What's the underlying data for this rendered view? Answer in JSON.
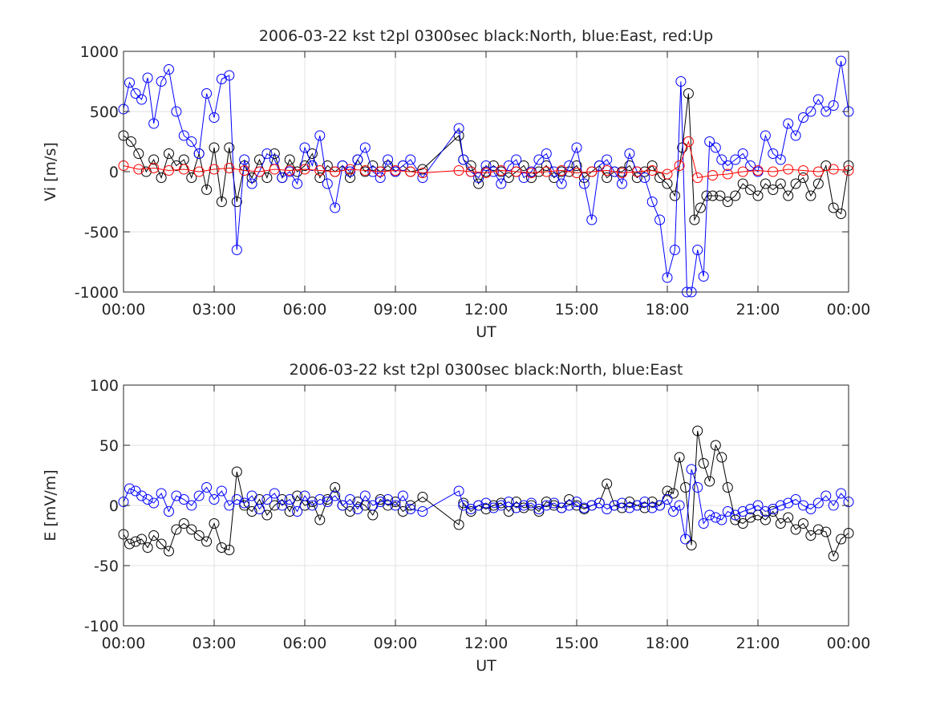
{
  "chart_data": [
    {
      "type": "scatter",
      "title": "2006-03-22 kst t2pl 0300sec black:North, blue:East, red:Up",
      "xlabel": "UT",
      "ylabel": "Vi [m/s]",
      "xlim": [
        0,
        24
      ],
      "ylim": [
        -1000,
        1000
      ],
      "xticks": [
        "00:00",
        "03:00",
        "06:00",
        "09:00",
        "12:00",
        "15:00",
        "18:00",
        "21:00",
        "00:00"
      ],
      "yticks": [
        "-1000",
        "-500",
        "0",
        "500",
        "1000"
      ],
      "grid": true,
      "series": [
        {
          "name": "North",
          "color": "#000000",
          "x": [
            0.0,
            0.25,
            0.5,
            0.75,
            1.0,
            1.25,
            1.5,
            1.75,
            2.0,
            2.25,
            2.5,
            2.75,
            3.0,
            3.25,
            3.5,
            3.75,
            4.0,
            4.25,
            4.5,
            4.75,
            5.0,
            5.25,
            5.5,
            5.75,
            6.0,
            6.25,
            6.5,
            6.75,
            7.0,
            7.25,
            7.5,
            7.75,
            8.0,
            8.25,
            8.5,
            8.75,
            9.0,
            9.25,
            9.5,
            9.9,
            11.1,
            11.25,
            11.5,
            11.75,
            12.0,
            12.25,
            12.5,
            12.75,
            13.0,
            13.25,
            13.5,
            13.75,
            14.0,
            14.25,
            14.5,
            14.75,
            15.0,
            15.25,
            15.5,
            15.75,
            16.0,
            16.25,
            16.5,
            16.75,
            17.0,
            17.25,
            17.5,
            17.75,
            18.0,
            18.25,
            18.5,
            18.7,
            18.9,
            19.1,
            19.3,
            19.5,
            19.75,
            20.0,
            20.25,
            20.5,
            20.75,
            21.0,
            21.25,
            21.5,
            21.75,
            22.0,
            22.25,
            22.5,
            22.75,
            23.0,
            23.25,
            23.5,
            23.75,
            24.0
          ],
          "y": [
            300,
            250,
            150,
            0,
            100,
            -50,
            150,
            50,
            100,
            -50,
            150,
            -150,
            200,
            -250,
            200,
            -250,
            50,
            -50,
            100,
            -50,
            150,
            -50,
            100,
            0,
            50,
            150,
            -50,
            50,
            0,
            50,
            -50,
            100,
            0,
            50,
            0,
            50,
            0,
            50,
            0,
            20,
            300,
            100,
            50,
            -100,
            0,
            50,
            0,
            -50,
            0,
            50,
            -50,
            0,
            50,
            -50,
            0,
            0,
            50,
            -50,
            0,
            50,
            -50,
            0,
            0,
            50,
            -50,
            0,
            50,
            -50,
            -100,
            -200,
            200,
            650,
            -400,
            -300,
            -200,
            -200,
            -200,
            -250,
            -200,
            -100,
            -150,
            -200,
            -100,
            -150,
            -100,
            -200,
            -100,
            -50,
            -200,
            -100,
            50,
            -300,
            -350,
            50
          ]
        },
        {
          "name": "East",
          "color": "#0000ff",
          "x": [
            0.0,
            0.2,
            0.4,
            0.6,
            0.8,
            1.0,
            1.25,
            1.5,
            1.75,
            2.0,
            2.25,
            2.5,
            2.75,
            3.0,
            3.25,
            3.5,
            3.75,
            4.0,
            4.25,
            4.5,
            4.75,
            5.0,
            5.25,
            5.5,
            5.75,
            6.0,
            6.25,
            6.5,
            6.75,
            7.0,
            7.25,
            7.5,
            7.75,
            8.0,
            8.25,
            8.5,
            8.75,
            9.0,
            9.25,
            9.5,
            9.9,
            11.1,
            11.25,
            11.5,
            11.75,
            12.0,
            12.25,
            12.5,
            12.75,
            13.0,
            13.25,
            13.5,
            13.75,
            14.0,
            14.25,
            14.5,
            14.75,
            15.0,
            15.25,
            15.5,
            15.75,
            16.0,
            16.25,
            16.5,
            16.75,
            17.0,
            17.25,
            17.5,
            17.75,
            18.0,
            18.25,
            18.45,
            18.65,
            18.8,
            19.0,
            19.2,
            19.4,
            19.6,
            19.8,
            20.0,
            20.25,
            20.5,
            20.75,
            21.0,
            21.25,
            21.5,
            21.75,
            22.0,
            22.25,
            22.5,
            22.75,
            23.0,
            23.25,
            23.5,
            23.75,
            24.0
          ],
          "y": [
            520,
            740,
            650,
            600,
            780,
            400,
            750,
            850,
            500,
            300,
            250,
            150,
            650,
            450,
            770,
            800,
            -650,
            100,
            -100,
            0,
            150,
            100,
            -50,
            0,
            -100,
            200,
            50,
            300,
            -100,
            -300,
            50,
            0,
            100,
            200,
            0,
            -50,
            100,
            0,
            50,
            100,
            -50,
            360,
            100,
            0,
            -50,
            50,
            0,
            -100,
            50,
            100,
            -50,
            0,
            100,
            150,
            0,
            -100,
            50,
            200,
            -100,
            -400,
            50,
            100,
            0,
            -100,
            150,
            0,
            -50,
            -250,
            -400,
            -880,
            -650,
            750,
            -1000,
            -1000,
            -650,
            -870,
            250,
            200,
            100,
            50,
            100,
            150,
            50,
            0,
            300,
            150,
            100,
            400,
            300,
            450,
            500,
            600,
            500,
            550,
            920,
            500
          ]
        },
        {
          "name": "Up",
          "color": "#ff0000",
          "x": [
            0.0,
            0.5,
            1.0,
            1.5,
            2.0,
            2.5,
            3.0,
            3.5,
            4.0,
            4.5,
            5.0,
            5.5,
            6.0,
            6.5,
            7.0,
            7.5,
            8.0,
            8.5,
            9.0,
            9.5,
            9.9,
            11.1,
            11.5,
            12.0,
            12.5,
            13.0,
            13.5,
            14.0,
            14.5,
            15.0,
            15.5,
            16.0,
            16.5,
            17.0,
            17.5,
            18.0,
            18.4,
            18.7,
            19.0,
            19.5,
            20.0,
            20.5,
            21.0,
            21.5,
            22.0,
            22.5,
            23.0,
            23.5,
            24.0
          ],
          "y": [
            50,
            20,
            30,
            10,
            20,
            0,
            20,
            30,
            10,
            0,
            20,
            10,
            20,
            10,
            0,
            20,
            10,
            0,
            10,
            0,
            -10,
            10,
            0,
            -10,
            10,
            0,
            -10,
            0,
            10,
            -10,
            0,
            10,
            -10,
            0,
            10,
            -20,
            50,
            250,
            -50,
            -30,
            -20,
            0,
            10,
            0,
            20,
            10,
            0,
            20,
            10
          ]
        }
      ]
    },
    {
      "type": "scatter",
      "title": "2006-03-22 kst t2pl 0300sec black:North, blue:East",
      "xlabel": "UT",
      "ylabel": "E [mV/m]",
      "xlim": [
        0,
        24
      ],
      "ylim": [
        -100,
        100
      ],
      "xticks": [
        "00:00",
        "03:00",
        "06:00",
        "09:00",
        "12:00",
        "15:00",
        "18:00",
        "21:00",
        "00:00"
      ],
      "yticks": [
        "-100",
        "-50",
        "0",
        "50",
        "100"
      ],
      "grid": true,
      "series": [
        {
          "name": "North",
          "color": "#000000",
          "x": [
            0.0,
            0.2,
            0.4,
            0.6,
            0.8,
            1.0,
            1.25,
            1.5,
            1.75,
            2.0,
            2.25,
            2.5,
            2.75,
            3.0,
            3.25,
            3.5,
            3.75,
            4.0,
            4.25,
            4.5,
            4.75,
            5.0,
            5.25,
            5.5,
            5.75,
            6.0,
            6.25,
            6.5,
            6.75,
            7.0,
            7.25,
            7.5,
            7.75,
            8.0,
            8.25,
            8.5,
            8.75,
            9.0,
            9.25,
            9.5,
            9.9,
            11.1,
            11.25,
            11.5,
            11.75,
            12.0,
            12.25,
            12.5,
            12.75,
            13.0,
            13.25,
            13.5,
            13.75,
            14.0,
            14.25,
            14.5,
            14.75,
            15.0,
            15.25,
            15.5,
            15.75,
            16.0,
            16.25,
            16.5,
            16.75,
            17.0,
            17.25,
            17.5,
            17.75,
            18.0,
            18.2,
            18.4,
            18.6,
            18.8,
            19.0,
            19.2,
            19.4,
            19.6,
            19.8,
            20.0,
            20.25,
            20.5,
            20.75,
            21.0,
            21.25,
            21.5,
            21.75,
            22.0,
            22.25,
            22.5,
            22.75,
            23.0,
            23.25,
            23.5,
            23.75,
            24.0
          ],
          "y": [
            -24,
            -32,
            -30,
            -28,
            -35,
            -25,
            -32,
            -38,
            -20,
            -15,
            -20,
            -25,
            -30,
            -15,
            -35,
            -37,
            28,
            0,
            -5,
            5,
            -8,
            0,
            5,
            -5,
            8,
            0,
            3,
            -12,
            5,
            15,
            0,
            -5,
            3,
            0,
            -8,
            5,
            0,
            3,
            -5,
            0,
            7,
            -16,
            2,
            -5,
            0,
            -3,
            0,
            2,
            -5,
            3,
            -2,
            0,
            -5,
            3,
            0,
            -2,
            5,
            0,
            -3,
            0,
            2,
            18,
            0,
            -2,
            3,
            0,
            -2,
            3,
            0,
            12,
            10,
            40,
            15,
            -33,
            62,
            35,
            20,
            50,
            40,
            15,
            -12,
            -15,
            -10,
            -8,
            -12,
            -5,
            -15,
            -10,
            -20,
            -15,
            -25,
            -20,
            -22,
            -42,
            -28,
            -23
          ]
        },
        {
          "name": "East",
          "color": "#0000ff",
          "x": [
            0.0,
            0.2,
            0.4,
            0.6,
            0.8,
            1.0,
            1.25,
            1.5,
            1.75,
            2.0,
            2.25,
            2.5,
            2.75,
            3.0,
            3.25,
            3.5,
            3.75,
            4.0,
            4.25,
            4.5,
            4.75,
            5.0,
            5.25,
            5.5,
            5.75,
            6.0,
            6.25,
            6.5,
            6.75,
            7.0,
            7.25,
            7.5,
            7.75,
            8.0,
            8.25,
            8.5,
            8.75,
            9.0,
            9.25,
            9.5,
            9.9,
            11.1,
            11.25,
            11.5,
            11.75,
            12.0,
            12.25,
            12.5,
            12.75,
            13.0,
            13.25,
            13.5,
            13.75,
            14.0,
            14.25,
            14.5,
            14.75,
            15.0,
            15.25,
            15.5,
            15.75,
            16.0,
            16.25,
            16.5,
            16.75,
            17.0,
            17.25,
            17.5,
            17.75,
            18.0,
            18.2,
            18.4,
            18.6,
            18.8,
            19.0,
            19.2,
            19.4,
            19.6,
            19.8,
            20.0,
            20.25,
            20.5,
            20.75,
            21.0,
            21.25,
            21.5,
            21.75,
            22.0,
            22.25,
            22.5,
            22.75,
            23.0,
            23.25,
            23.5,
            23.75,
            24.0
          ],
          "y": [
            3,
            14,
            12,
            8,
            5,
            2,
            10,
            -5,
            8,
            5,
            0,
            8,
            15,
            5,
            12,
            0,
            5,
            2,
            8,
            -3,
            5,
            10,
            0,
            5,
            -5,
            8,
            0,
            5,
            3,
            8,
            0,
            5,
            -3,
            8,
            0,
            3,
            5,
            0,
            8,
            -3,
            -5,
            12,
            0,
            -3,
            0,
            2,
            -2,
            0,
            3,
            -2,
            0,
            2,
            -3,
            0,
            2,
            -2,
            0,
            3,
            -2,
            0,
            2,
            -3,
            0,
            2,
            -2,
            0,
            3,
            -2,
            0,
            5,
            -5,
            0,
            -28,
            30,
            15,
            -15,
            -8,
            -10,
            -12,
            -5,
            -8,
            -5,
            -3,
            0,
            -5,
            -3,
            0,
            2,
            5,
            0,
            -3,
            2,
            8,
            0,
            10,
            3
          ]
        }
      ]
    }
  ]
}
